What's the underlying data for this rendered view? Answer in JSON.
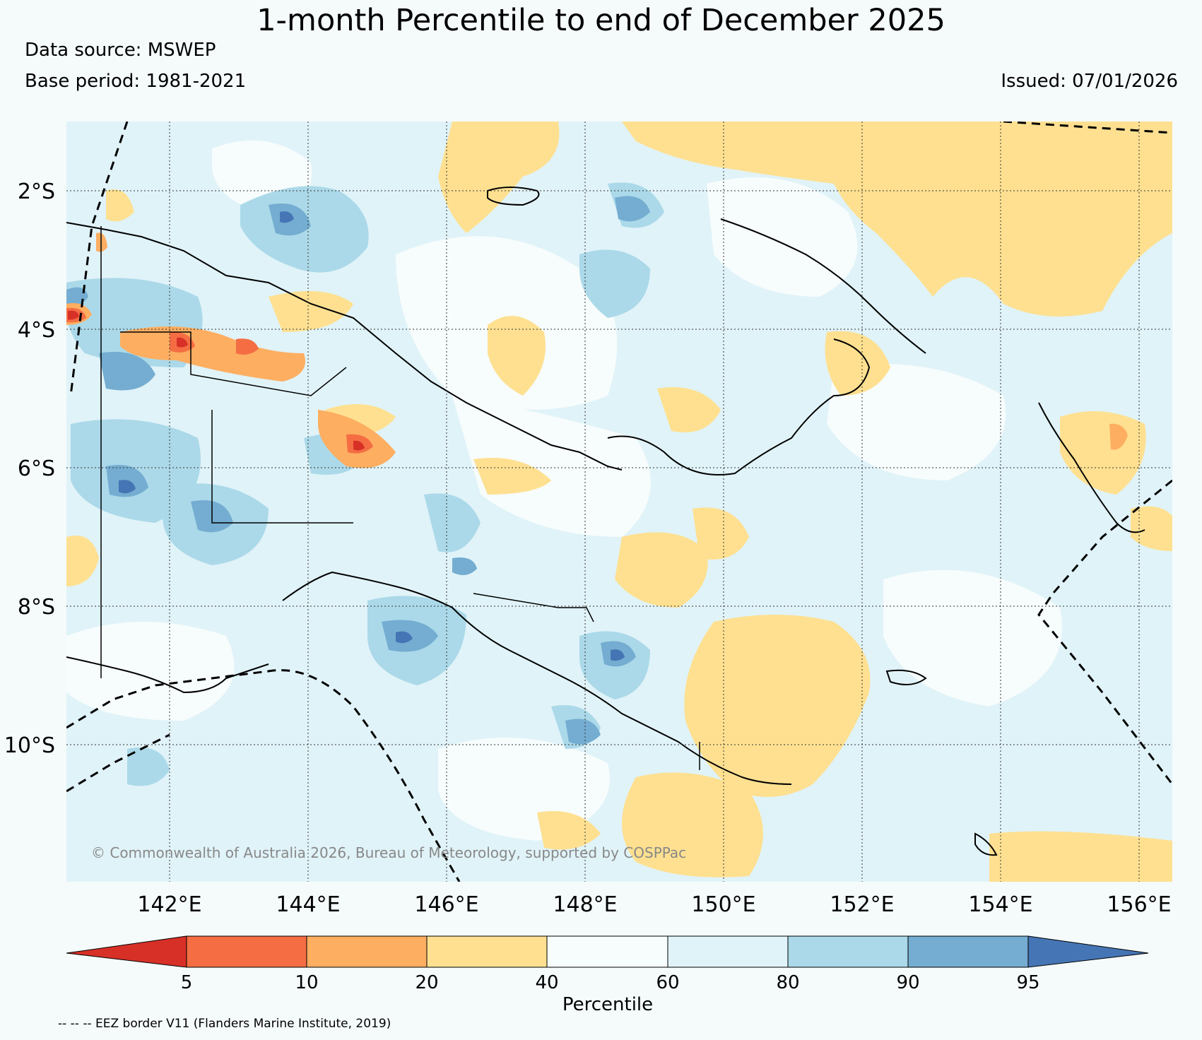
{
  "title": "1-month Percentile to end of December 2025",
  "data_source": "Data source: MSWEP",
  "base_period": "Base period: 1981-2021",
  "issued": "Issued: 07/01/2026",
  "copyright": "© Commonwealth of Australia 2026, Bureau of Meteorology, supported by COSPPac",
  "lat_ticks": [
    "2°S",
    "4°S",
    "6°S",
    "8°S",
    "10°S"
  ],
  "lon_ticks": [
    "142°E",
    "144°E",
    "146°E",
    "148°E",
    "150°E",
    "152°E",
    "154°E",
    "156°E"
  ],
  "colorbar": {
    "label": "Percentile",
    "ticks": [
      "5",
      "10",
      "20",
      "40",
      "60",
      "80",
      "90",
      "95"
    ],
    "colors": [
      "#d73027",
      "#f46d43",
      "#fdae61",
      "#fee090",
      "#f7fcfc",
      "#e0f3f8",
      "#abd9e9",
      "#74add1",
      "#4575b4"
    ]
  },
  "legend_note": "-- -- -- EEZ border V11 (Flanders Marine Institute, 2019)"
}
